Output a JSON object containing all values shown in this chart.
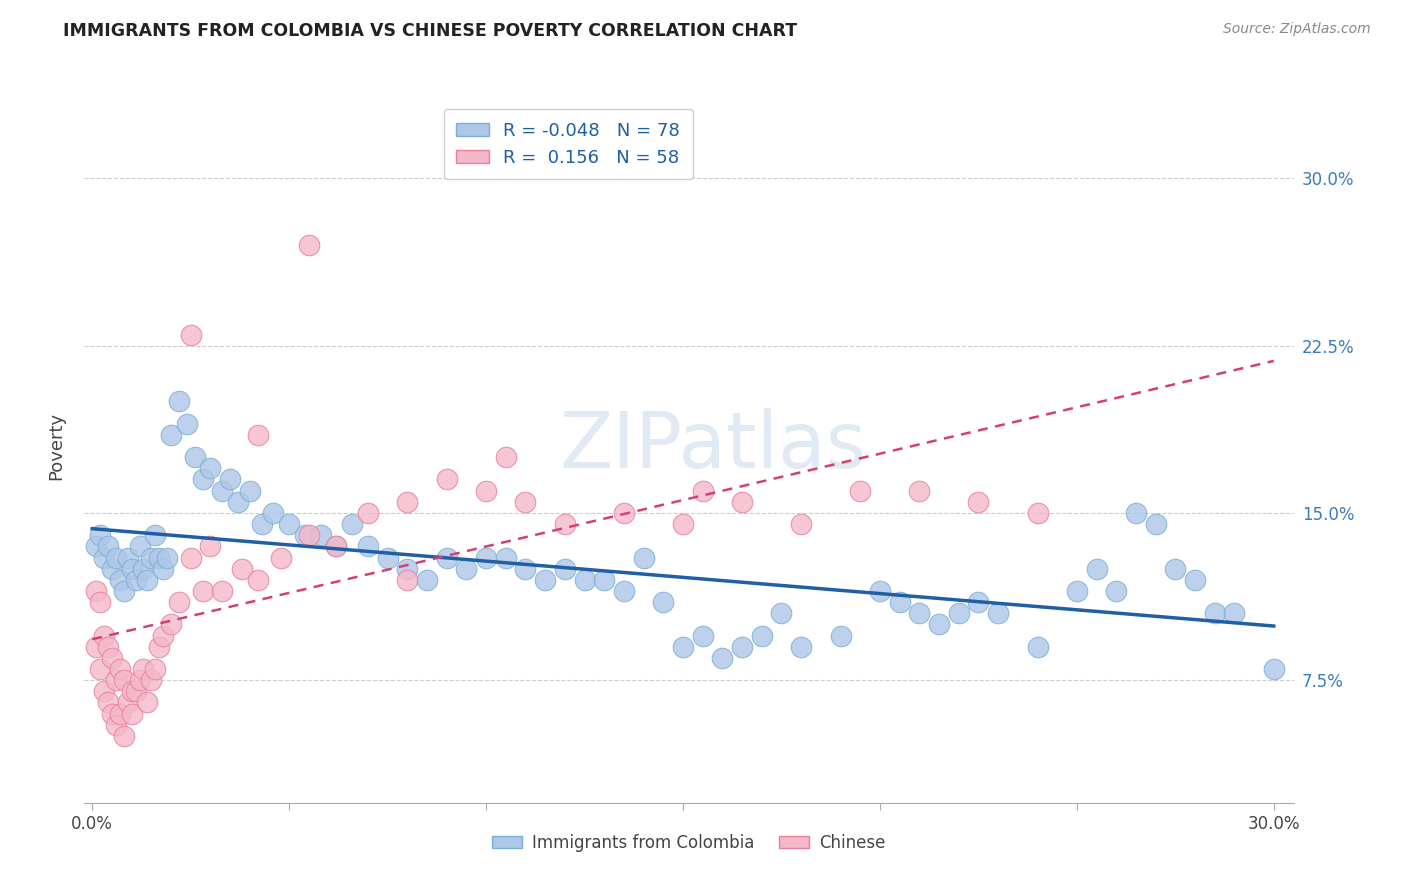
{
  "title": "IMMIGRANTS FROM COLOMBIA VS CHINESE POVERTY CORRELATION CHART",
  "source": "Source: ZipAtlas.com",
  "ylabel": "Poverty",
  "xlim": [
    0.0,
    0.3
  ],
  "ylim": [
    0.02,
    0.335
  ],
  "colombia_color": "#aec6e8",
  "colombia_edge": "#7bafd4",
  "chinese_color": "#f4b8c8",
  "chinese_edge": "#e87fa0",
  "colombia_R": -0.048,
  "colombia_N": 78,
  "chinese_R": 0.156,
  "chinese_N": 58,
  "trend_blue": "#1f5fa6",
  "trend_pink": "#d44070",
  "right_tick_color": "#3b7abf",
  "grid_color": "#cccccc",
  "watermark_color": "#c8d8ec",
  "watermark": "ZIPatlas",
  "colombia_x": [
    0.001,
    0.002,
    0.003,
    0.004,
    0.005,
    0.006,
    0.007,
    0.008,
    0.009,
    0.01,
    0.011,
    0.012,
    0.013,
    0.014,
    0.015,
    0.016,
    0.017,
    0.018,
    0.019,
    0.02,
    0.022,
    0.024,
    0.026,
    0.028,
    0.03,
    0.033,
    0.035,
    0.037,
    0.04,
    0.043,
    0.046,
    0.05,
    0.054,
    0.058,
    0.062,
    0.066,
    0.07,
    0.075,
    0.08,
    0.085,
    0.09,
    0.095,
    0.1,
    0.105,
    0.11,
    0.115,
    0.12,
    0.125,
    0.13,
    0.135,
    0.14,
    0.145,
    0.15,
    0.155,
    0.16,
    0.165,
    0.17,
    0.175,
    0.18,
    0.19,
    0.2,
    0.205,
    0.21,
    0.215,
    0.22,
    0.225,
    0.23,
    0.24,
    0.25,
    0.255,
    0.26,
    0.265,
    0.27,
    0.275,
    0.28,
    0.285,
    0.29,
    0.3
  ],
  "colombia_y": [
    0.135,
    0.14,
    0.13,
    0.135,
    0.125,
    0.13,
    0.12,
    0.115,
    0.13,
    0.125,
    0.12,
    0.135,
    0.125,
    0.12,
    0.13,
    0.14,
    0.13,
    0.125,
    0.13,
    0.185,
    0.2,
    0.19,
    0.175,
    0.165,
    0.17,
    0.16,
    0.165,
    0.155,
    0.16,
    0.145,
    0.15,
    0.145,
    0.14,
    0.14,
    0.135,
    0.145,
    0.135,
    0.13,
    0.125,
    0.12,
    0.13,
    0.125,
    0.13,
    0.13,
    0.125,
    0.12,
    0.125,
    0.12,
    0.12,
    0.115,
    0.13,
    0.11,
    0.09,
    0.095,
    0.085,
    0.09,
    0.095,
    0.105,
    0.09,
    0.095,
    0.115,
    0.11,
    0.105,
    0.1,
    0.105,
    0.11,
    0.105,
    0.09,
    0.115,
    0.125,
    0.115,
    0.15,
    0.145,
    0.125,
    0.12,
    0.105,
    0.105,
    0.08
  ],
  "chinese_x": [
    0.001,
    0.001,
    0.002,
    0.002,
    0.003,
    0.003,
    0.004,
    0.004,
    0.005,
    0.005,
    0.006,
    0.006,
    0.007,
    0.007,
    0.008,
    0.008,
    0.009,
    0.01,
    0.01,
    0.011,
    0.012,
    0.013,
    0.014,
    0.015,
    0.016,
    0.017,
    0.018,
    0.02,
    0.022,
    0.025,
    0.028,
    0.03,
    0.033,
    0.038,
    0.042,
    0.048,
    0.055,
    0.062,
    0.07,
    0.08,
    0.09,
    0.1,
    0.11,
    0.12,
    0.135,
    0.15,
    0.165,
    0.18,
    0.195,
    0.21,
    0.225,
    0.24,
    0.055,
    0.105,
    0.155,
    0.025,
    0.042,
    0.08
  ],
  "chinese_y": [
    0.115,
    0.09,
    0.11,
    0.08,
    0.095,
    0.07,
    0.09,
    0.065,
    0.085,
    0.06,
    0.075,
    0.055,
    0.08,
    0.06,
    0.075,
    0.05,
    0.065,
    0.07,
    0.06,
    0.07,
    0.075,
    0.08,
    0.065,
    0.075,
    0.08,
    0.09,
    0.095,
    0.1,
    0.11,
    0.13,
    0.115,
    0.135,
    0.115,
    0.125,
    0.12,
    0.13,
    0.14,
    0.135,
    0.15,
    0.155,
    0.165,
    0.16,
    0.155,
    0.145,
    0.15,
    0.145,
    0.155,
    0.145,
    0.16,
    0.16,
    0.155,
    0.15,
    0.27,
    0.175,
    0.16,
    0.23,
    0.185,
    0.12
  ]
}
